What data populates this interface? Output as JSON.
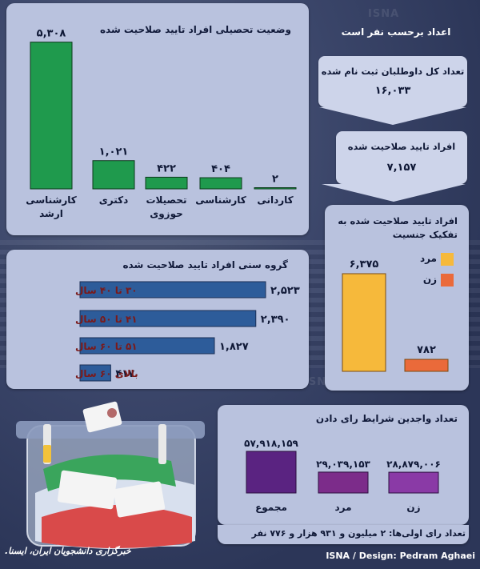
{
  "header_title": "اعداد برحسب نفر است",
  "watermark": "ISNA",
  "footer_credit": "ISNA / Design: Pedram Aghaei",
  "footer_logo_text": "خبرگزاری دانشجویان ایران، ایسنا.",
  "flow": {
    "registered_label": "تعداد کل داوطلبان ثبت نام شده",
    "registered_value": "۱۶,۰۳۳",
    "approved_label": "افراد تایید صلاحیت شده",
    "approved_value": "۷,۱۵۷"
  },
  "footer_turnout": "تعداد رای اولی‌ها: ۲ میلیون و ۹۳۱ هزار و ۷۷۶ نفر",
  "colors": {
    "edu_green": "#1f9a4d",
    "age_blue": "#2d5c9a",
    "male_yellow": "#f6b93b",
    "female_orange": "#ea6a3a",
    "voters_purple": "#5a2381",
    "voters_mixed": "#7c2c8a",
    "voters_violet": "#8a3aa6"
  },
  "chart_data": [
    {
      "type": "bar",
      "id": "education",
      "title": "وضعیت تحصیلی افراد تایید صلاحیت شده",
      "categories": [
        "کارشناسی ارشد",
        "دکتری",
        "تحصیلات حوزوی",
        "کارشناسی",
        "کاردانی"
      ],
      "values": [
        5308,
        1021,
        422,
        404,
        2
      ],
      "value_labels": [
        "۵,۳۰۸",
        "۱,۰۲۱",
        "۴۲۲",
        "۴۰۴",
        "۲"
      ],
      "color": "#1f9a4d"
    },
    {
      "type": "bar",
      "orientation": "horizontal",
      "id": "age",
      "title": "گروه سنی افراد تایید صلاحیت شده",
      "categories": [
        "۳۰ تا ۴۰ سال",
        "۴۱ تا ۵۰ سال",
        "۵۱ تا ۶۰ سال",
        "بالای ۶۰ سال"
      ],
      "values": [
        2523,
        2390,
        1827,
        417
      ],
      "value_labels": [
        "۲,۵۲۳",
        "۲,۳۹۰",
        "۱,۸۲۷",
        "۴۱۷"
      ],
      "color": "#2d5c9a"
    },
    {
      "type": "bar",
      "id": "gender",
      "title": "افراد تایید صلاحیت شده به تفکیک جنسیت",
      "categories": [
        "مرد",
        "زن"
      ],
      "values": [
        6375,
        782
      ],
      "value_labels": [
        "۶,۳۷۵",
        "۷۸۲"
      ],
      "colors": [
        "#f6b93b",
        "#ea6a3a"
      ],
      "legend": [
        "مرد",
        "زن"
      ]
    },
    {
      "type": "bar",
      "id": "voters",
      "title": "تعداد واجدین شرایط رای دادن",
      "categories": [
        "مجموع",
        "مرد",
        "زن"
      ],
      "values": [
        57918159,
        29039153,
        28879006
      ],
      "value_labels": [
        "۵۷,۹۱۸,۱۵۹",
        "۲۹,۰۳۹,۱۵۳",
        "۲۸,۸۷۹,۰۰۶"
      ],
      "colors": [
        "#5a2381",
        "#7c2c8a",
        "#8a3aa6"
      ]
    }
  ]
}
